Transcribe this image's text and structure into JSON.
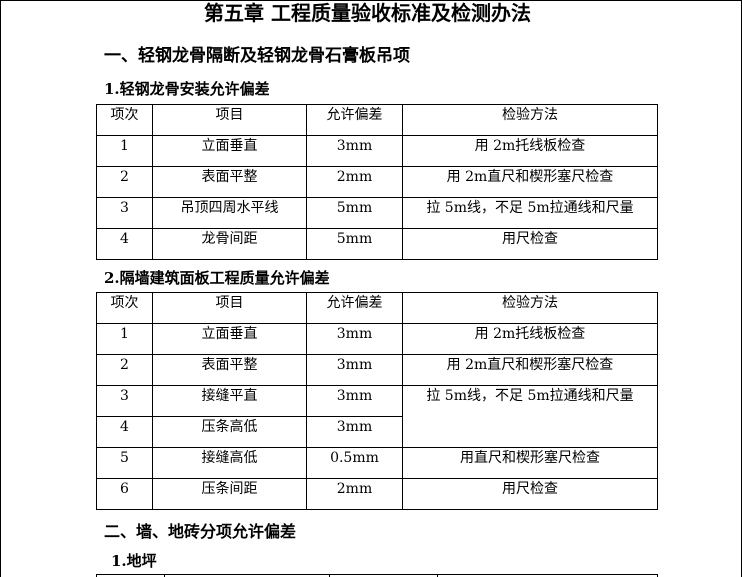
{
  "title": "第五章  工程质量验收标准及检测办法",
  "section1": {
    "heading": "一、轻钢龙骨隔断及轻钢龙骨石膏板吊项",
    "table1": {
      "caption": "1.轻钢龙骨安装允许偏差",
      "headers": [
        "项次",
        "项目",
        "允许偏差",
        "检验方法"
      ],
      "rows": [
        [
          "1",
          "立面垂直",
          "3mm",
          "用 2m托线板检查"
        ],
        [
          "2",
          "表面平整",
          "2mm",
          "用 2m直尺和楔形塞尺检查"
        ],
        [
          "3",
          "吊顶四周水平线",
          "5mm",
          "拉 5m线，不足 5m拉通线和尺量"
        ],
        [
          "4",
          "龙骨间距",
          "5mm",
          "用尺检查"
        ]
      ]
    },
    "table2": {
      "caption": "2.隔墙建筑面板工程质量允许偏差",
      "headers": [
        "项次",
        "项目",
        "允许偏差",
        "检验方法"
      ],
      "rows": [
        [
          "1",
          "立面垂直",
          "3mm",
          "用 2m托线板检查"
        ],
        [
          "2",
          "表面平整",
          "3mm",
          "用 2m直尺和楔形塞尺检查"
        ],
        [
          "3",
          "接缝平直",
          "3mm",
          "拉 5m线，不足 5m拉通线和尺量"
        ],
        [
          "4",
          "压条高低",
          "3mm",
          ""
        ],
        [
          "5",
          "接缝高低",
          "0.5mm",
          "用直尺和楔形塞尺检查"
        ],
        [
          "6",
          "压条间距",
          "2mm",
          "用尺检查"
        ]
      ]
    }
  },
  "section2": {
    "heading": "二、墙、地砖分项允许偏差",
    "sub": "1.地坪"
  }
}
